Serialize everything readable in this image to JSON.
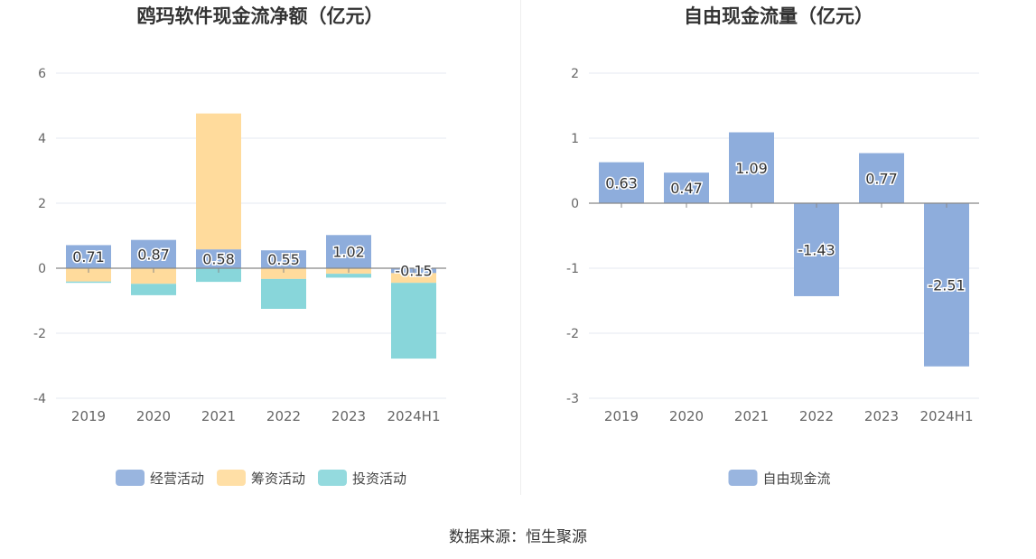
{
  "source_label": "数据来源：恒生聚源",
  "chart_data": [
    {
      "type": "bar",
      "title": "鸥玛软件现金流净额（亿元）",
      "categories": [
        "2019",
        "2020",
        "2021",
        "2022",
        "2023",
        "2024H1"
      ],
      "ylim": [
        -4,
        6
      ],
      "yticks": [
        6,
        4,
        2,
        0,
        -2,
        -4
      ],
      "grid": true,
      "legend_position": "bottom-center",
      "series": [
        {
          "name": "经营活动",
          "color": "#8eaddc",
          "values": [
            0.71,
            0.87,
            0.58,
            0.55,
            1.02,
            -0.15
          ],
          "labels": [
            "0.71",
            "0.87",
            "0.58",
            "0.55",
            "1.02",
            "-0.15"
          ]
        },
        {
          "name": "筹资活动",
          "color": "#ffdb9c",
          "values": [
            -0.41,
            -0.48,
            4.18,
            -0.33,
            -0.17,
            -0.3
          ]
        },
        {
          "name": "投资活动",
          "color": "#88d6da",
          "values": [
            -0.04,
            -0.35,
            -0.42,
            -0.92,
            -0.12,
            -2.33
          ]
        }
      ]
    },
    {
      "type": "bar",
      "title": "自由现金流量（亿元）",
      "categories": [
        "2019",
        "2020",
        "2021",
        "2022",
        "2023",
        "2024H1"
      ],
      "ylim": [
        -3,
        2
      ],
      "yticks": [
        2,
        1,
        0,
        -1,
        -2,
        -3
      ],
      "grid": true,
      "legend_position": "bottom-center",
      "series": [
        {
          "name": "自由现金流",
          "color": "#8eaddc",
          "values": [
            0.63,
            0.47,
            1.09,
            -1.43,
            0.77,
            -2.51
          ],
          "labels": [
            "0.63",
            "0.47",
            "1.09",
            "-1.43",
            "0.77",
            "-2.51"
          ]
        }
      ]
    }
  ]
}
